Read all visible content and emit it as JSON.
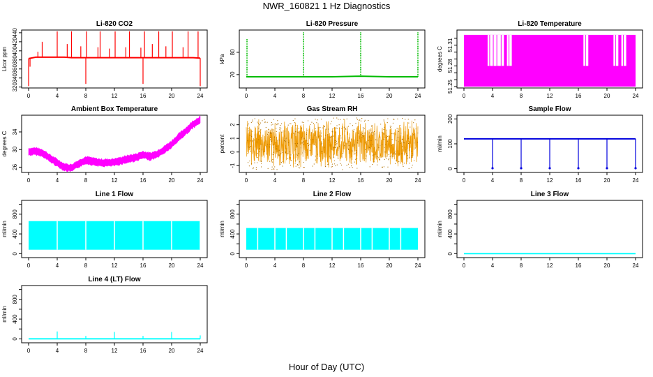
{
  "page": {
    "title": "NWR_160821  1 Hz Diagnostics",
    "x_axis_title": "Hour of Day (UTC)"
  },
  "chart_data": [
    {
      "id": "co2",
      "type": "line",
      "title": "Li-820 CO2",
      "ylabel": "Licor ppm",
      "xlim": [
        0,
        24
      ],
      "xticks": [
        0,
        4,
        8,
        12,
        16,
        20,
        24
      ],
      "ylim": [
        318,
        446
      ],
      "yticks": [
        320,
        340,
        360,
        380,
        400,
        420,
        440
      ],
      "color": "#ff0000",
      "series": [
        {
          "x": [
            0,
            1,
            2,
            3,
            4,
            5,
            6,
            7,
            8,
            9,
            10,
            11,
            12,
            13,
            14,
            15,
            16,
            17,
            18,
            19,
            20,
            21,
            22,
            23,
            24
          ],
          "y": [
            383,
            386,
            386,
            386,
            386,
            386,
            385,
            385,
            385,
            385,
            385,
            385,
            385,
            385,
            385,
            385,
            385,
            385,
            385,
            385,
            385,
            385,
            385,
            385,
            384
          ]
        }
      ],
      "spikes": [
        {
          "x": 0.0,
          "y": 322
        },
        {
          "x": 0.2,
          "y": 365
        },
        {
          "x": 1.3,
          "y": 398
        },
        {
          "x": 1.9,
          "y": 420
        },
        {
          "x": 4.0,
          "y": 443
        },
        {
          "x": 5.4,
          "y": 415
        },
        {
          "x": 6.0,
          "y": 443
        },
        {
          "x": 7.3,
          "y": 410
        },
        {
          "x": 8.0,
          "y": 327
        },
        {
          "x": 8.1,
          "y": 443
        },
        {
          "x": 9.7,
          "y": 408
        },
        {
          "x": 10.0,
          "y": 443
        },
        {
          "x": 11.3,
          "y": 405
        },
        {
          "x": 12.1,
          "y": 443
        },
        {
          "x": 13.6,
          "y": 408
        },
        {
          "x": 14.1,
          "y": 443
        },
        {
          "x": 15.7,
          "y": 407
        },
        {
          "x": 16.0,
          "y": 327
        },
        {
          "x": 16.2,
          "y": 443
        },
        {
          "x": 17.3,
          "y": 415
        },
        {
          "x": 18.2,
          "y": 443
        },
        {
          "x": 19.2,
          "y": 410
        },
        {
          "x": 20.1,
          "y": 443
        },
        {
          "x": 21.6,
          "y": 408
        },
        {
          "x": 22.3,
          "y": 443
        },
        {
          "x": 23.7,
          "y": 443
        },
        {
          "x": 24.0,
          "y": 322
        }
      ]
    },
    {
      "id": "pressure",
      "type": "line",
      "title": "Li-820 Pressure",
      "ylabel": "kPa",
      "xlim": [
        0,
        24
      ],
      "xticks": [
        0,
        4,
        8,
        12,
        16,
        20,
        24
      ],
      "ylim": [
        64,
        90
      ],
      "yticks": [
        70,
        80
      ],
      "color": "#00bb00",
      "series": [
        {
          "x": [
            0,
            4,
            8,
            12,
            16,
            20,
            24
          ],
          "y": [
            69,
            69,
            69,
            69,
            69.3,
            69,
            69
          ]
        }
      ],
      "spikes": [
        {
          "x": 0.1,
          "y": 86
        },
        {
          "x": 8.0,
          "y": 89
        },
        {
          "x": 16.0,
          "y": 89
        },
        {
          "x": 24.0,
          "y": 89
        }
      ]
    },
    {
      "id": "licor_temp",
      "type": "area",
      "title": "Li-820 Temperature",
      "ylabel": "degrees C",
      "xlim": [
        0,
        24
      ],
      "xticks": [
        0,
        4,
        8,
        12,
        16,
        20,
        24
      ],
      "ylim": [
        51.248,
        51.332
      ],
      "yticks": [
        51.25,
        51.26,
        51.27,
        51.28,
        51.29,
        51.3,
        51.31,
        51.32
      ],
      "ytick_labels": [
        "51.25",
        "",
        "",
        "51.28",
        "",
        "",
        "51.31",
        ""
      ],
      "color": "#ff00ff",
      "band": {
        "low": 51.25,
        "high": 51.325
      },
      "gaps": [
        {
          "x": 3.7,
          "low": 51.28
        },
        {
          "x": 4.2,
          "low": 51.28
        },
        {
          "x": 4.7,
          "low": 51.28
        },
        {
          "x": 5.3,
          "low": 51.28
        },
        {
          "x": 6.4,
          "low": 51.28
        },
        {
          "x": 17.1,
          "low": 51.28
        },
        {
          "x": 21.3,
          "low": 51.28
        },
        {
          "x": 22.4,
          "low": 51.28
        }
      ]
    },
    {
      "id": "box_temp",
      "type": "line",
      "title": "Ambient Box Temperature",
      "ylabel": "degrees C",
      "xlim": [
        0,
        24
      ],
      "xticks": [
        0,
        4,
        8,
        12,
        16,
        20,
        24
      ],
      "ylim": [
        24.8,
        37.8
      ],
      "yticks": [
        26,
        30,
        34
      ],
      "color": "#ff00ff",
      "series": [
        {
          "x": [
            0,
            1,
            2,
            3,
            4,
            5,
            6,
            7,
            8,
            9,
            10,
            11,
            12,
            13,
            14,
            15,
            16,
            17,
            18,
            19,
            20,
            21,
            22,
            23,
            24
          ],
          "y": [
            29.5,
            29.6,
            29.2,
            28.0,
            27.0,
            26.0,
            25.8,
            26.8,
            27.6,
            27.3,
            27.0,
            27.0,
            27.1,
            27.5,
            27.9,
            28.2,
            28.8,
            28.4,
            29.0,
            30.0,
            31.2,
            32.8,
            34.2,
            35.7,
            36.8
          ]
        }
      ],
      "band_width": 1.2
    },
    {
      "id": "rh",
      "type": "line",
      "title": "Gas Stream RH",
      "ylabel": "percent",
      "xlim": [
        0,
        24
      ],
      "xticks": [
        0,
        4,
        8,
        12,
        16,
        20,
        24
      ],
      "ylim": [
        -1.5,
        2.7
      ],
      "yticks": [
        -1,
        0,
        1,
        2
      ],
      "color": "#ee9900",
      "band": {
        "low": -1.3,
        "high": 2.5,
        "center": 0.6
      }
    },
    {
      "id": "sample_flow",
      "type": "line",
      "title": "Sample Flow",
      "ylabel": "ml/min",
      "xlim": [
        0,
        24
      ],
      "xticks": [
        0,
        4,
        8,
        12,
        16,
        20,
        24
      ],
      "ylim": [
        -15,
        215
      ],
      "yticks": [
        0,
        100,
        200
      ],
      "color": "#0000dd",
      "series": [
        {
          "x": [
            0,
            4,
            8,
            12,
            16,
            20,
            24
          ],
          "y": [
            120,
            120,
            120,
            120,
            120,
            120,
            120
          ]
        }
      ],
      "spikes": [
        {
          "x": 4.0,
          "y": 2
        },
        {
          "x": 8.0,
          "y": 2
        },
        {
          "x": 12.0,
          "y": 2
        },
        {
          "x": 16.0,
          "y": 2
        },
        {
          "x": 20.0,
          "y": 2
        },
        {
          "x": 24.0,
          "y": 2
        }
      ]
    },
    {
      "id": "line1",
      "type": "area",
      "title": "Line 1 Flow",
      "ylabel": "ml/min",
      "xlim": [
        0,
        24
      ],
      "xticks": [
        0,
        4,
        8,
        12,
        16,
        20,
        24
      ],
      "ylim": [
        -80,
        1080
      ],
      "yticks": [
        0,
        200,
        400,
        600,
        800,
        1000
      ],
      "ytick_labels": [
        "0",
        "",
        "400",
        "",
        "800",
        ""
      ],
      "color": "#00ffff",
      "band": {
        "low": 80,
        "high": 660
      },
      "gaps": [
        {
          "x": 4.0
        },
        {
          "x": 8.0
        },
        {
          "x": 12.0
        },
        {
          "x": 16.0
        },
        {
          "x": 20.0
        },
        {
          "x": 24.0
        }
      ]
    },
    {
      "id": "line2",
      "type": "area",
      "title": "Line 2 Flow",
      "ylabel": "ml/min",
      "xlim": [
        0,
        24
      ],
      "xticks": [
        0,
        4,
        8,
        12,
        16,
        20,
        24
      ],
      "ylim": [
        -80,
        1080
      ],
      "yticks": [
        0,
        200,
        400,
        600,
        800,
        1000
      ],
      "ytick_labels": [
        "0",
        "",
        "400",
        "",
        "800",
        ""
      ],
      "color": "#00ffff",
      "band": {
        "low": 80,
        "high": 520
      },
      "gaps": [
        {
          "x": 1.6
        },
        {
          "x": 4.0
        },
        {
          "x": 5.6
        },
        {
          "x": 8.0
        },
        {
          "x": 9.6
        },
        {
          "x": 12.0
        },
        {
          "x": 13.6
        },
        {
          "x": 16.0
        },
        {
          "x": 17.6
        },
        {
          "x": 20.0
        },
        {
          "x": 21.6
        }
      ]
    },
    {
      "id": "line3",
      "type": "line",
      "title": "Line 3 Flow",
      "ylabel": "ml/min",
      "xlim": [
        0,
        24
      ],
      "xticks": [
        0,
        4,
        8,
        12,
        16,
        20,
        24
      ],
      "ylim": [
        -80,
        1080
      ],
      "yticks": [
        0,
        200,
        400,
        600,
        800,
        1000
      ],
      "ytick_labels": [
        "0",
        "",
        "400",
        "",
        "800",
        ""
      ],
      "color": "#00ffff",
      "series": [
        {
          "x": [
            0,
            24
          ],
          "y": [
            0,
            0
          ]
        }
      ]
    },
    {
      "id": "line4",
      "type": "line",
      "title": "Line 4 (LT) Flow",
      "ylabel": "ml/min",
      "xlim": [
        0,
        24
      ],
      "xticks": [
        0,
        4,
        8,
        12,
        16,
        20,
        24
      ],
      "ylim": [
        -80,
        1080
      ],
      "yticks": [
        0,
        200,
        400,
        600,
        800,
        1000
      ],
      "ytick_labels": [
        "0",
        "",
        "400",
        "",
        "800",
        ""
      ],
      "color": "#00ffff",
      "series": [
        {
          "x": [
            0,
            24
          ],
          "y": [
            0,
            0
          ]
        }
      ],
      "spikes": [
        {
          "x": 4.0,
          "y": 150
        },
        {
          "x": 8.0,
          "y": 60
        },
        {
          "x": 12.0,
          "y": 140
        },
        {
          "x": 16.0,
          "y": 60
        },
        {
          "x": 20.0,
          "y": 140
        },
        {
          "x": 24.0,
          "y": 70
        }
      ]
    }
  ]
}
